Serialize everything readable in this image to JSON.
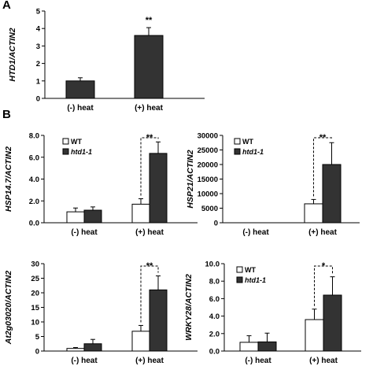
{
  "figure": {
    "panel_labels": [
      "A",
      "B"
    ]
  },
  "chart_data": [
    {
      "panel": "A",
      "type": "bar",
      "ylabel": "HTD1/ACTIN2",
      "ylim": [
        0,
        5
      ],
      "yticks": [
        "0",
        "1",
        "2",
        "3",
        "4",
        "5"
      ],
      "categories": [
        "(-) heat",
        "(+) heat"
      ],
      "series": [
        {
          "values": [
            1.0,
            3.6
          ],
          "errors": [
            0.18,
            0.45
          ],
          "color": "#333333"
        }
      ],
      "annotations": [
        {
          "category": 1,
          "text": "**"
        }
      ]
    },
    {
      "panel": "B1",
      "type": "bar",
      "ylabel": "HSP14.7/ACTIN2",
      "ylim": [
        0,
        8
      ],
      "yticks": [
        "0.0",
        "2.0",
        "4.0",
        "6.0",
        "8.0"
      ],
      "categories": [
        "(-) heat",
        "(+) heat"
      ],
      "legend": [
        "WT",
        "htd1-1"
      ],
      "series": [
        {
          "name": "WT",
          "values": [
            1.0,
            1.7
          ],
          "errors": [
            0.35,
            0.5
          ],
          "color": "#ffffff"
        },
        {
          "name": "htd1-1",
          "values": [
            1.15,
            6.35
          ],
          "errors": [
            0.3,
            1.05
          ],
          "color": "#333333"
        }
      ],
      "annotations": [
        {
          "category": 1,
          "text": "**"
        }
      ]
    },
    {
      "panel": "B2",
      "type": "bar",
      "ylabel": "HSP21/ACTIN2",
      "ylim": [
        0,
        30000
      ],
      "yticks": [
        "0",
        "5000",
        "10000",
        "15000",
        "20000",
        "25000",
        "30000"
      ],
      "categories": [
        "(-) heat",
        "(+) heat"
      ],
      "legend": [
        "WT",
        "htd1-1"
      ],
      "series": [
        {
          "name": "WT",
          "values": [
            0,
            6500
          ],
          "errors": [
            0,
            1500
          ],
          "color": "#ffffff"
        },
        {
          "name": "htd1-1",
          "values": [
            0,
            20000
          ],
          "errors": [
            0,
            7500
          ],
          "color": "#333333"
        }
      ],
      "annotations": [
        {
          "category": 1,
          "text": "**"
        }
      ]
    },
    {
      "panel": "B3",
      "type": "bar",
      "ylabel": "At2g03020/ACTIN2",
      "ylim": [
        0,
        30
      ],
      "yticks": [
        "0",
        "5",
        "10",
        "15",
        "20",
        "25",
        "30"
      ],
      "categories": [
        "(-) heat",
        "(+) heat"
      ],
      "legend": [],
      "series": [
        {
          "name": "WT",
          "values": [
            0.9,
            6.8
          ],
          "errors": [
            0.3,
            2.0
          ],
          "color": "#ffffff"
        },
        {
          "name": "htd1-1",
          "values": [
            2.5,
            21.0
          ],
          "errors": [
            1.5,
            4.8
          ],
          "color": "#333333"
        }
      ],
      "annotations": [
        {
          "category": 1,
          "text": "**"
        }
      ]
    },
    {
      "panel": "B4",
      "type": "bar",
      "ylabel": "WRKY28/ACTIN2",
      "ylim": [
        0,
        10
      ],
      "yticks": [
        "0.0",
        "2.0",
        "4.0",
        "6.0",
        "8.0",
        "10.0"
      ],
      "categories": [
        "(-) heat",
        "(+) heat"
      ],
      "legend": [
        "WT",
        "htd1-1"
      ],
      "series": [
        {
          "name": "WT",
          "values": [
            1.0,
            3.6
          ],
          "errors": [
            0.75,
            1.2
          ],
          "color": "#ffffff"
        },
        {
          "name": "htd1-1",
          "values": [
            1.05,
            6.4
          ],
          "errors": [
            1.0,
            2.1
          ],
          "color": "#333333"
        }
      ],
      "annotations": [
        {
          "category": 1,
          "text": "*"
        }
      ]
    }
  ]
}
